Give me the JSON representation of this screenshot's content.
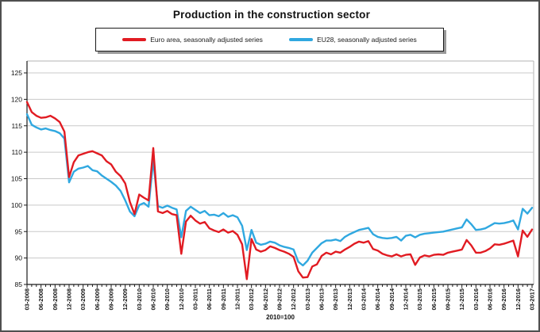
{
  "title": "Production in the construction sector",
  "legend": [
    {
      "label": "Euro area, seasonally adjusted series",
      "color": "#e11b22"
    },
    {
      "label": "EU28, seasonally adjusted series",
      "color": "#30a8e0"
    }
  ],
  "chart_data": {
    "type": "line",
    "note": "2010=100",
    "x_frequency": "monthly",
    "x_tick_labels": [
      "03-2008",
      "06-2008",
      "09-2008",
      "12-2008",
      "03-2009",
      "06-2009",
      "09-2009",
      "12-2009",
      "03-2010",
      "06-2010",
      "09-2010",
      "12-2010",
      "03-2011",
      "06-2011",
      "09-2011",
      "12-2011",
      "03-2012",
      "06-2012",
      "09-2012",
      "12-2012",
      "03-2013",
      "06-2013",
      "09-2013",
      "12-2013",
      "03-2014",
      "06-2014",
      "09-2014",
      "12-2014",
      "03-2015",
      "06-2015",
      "09-2015",
      "12-2015",
      "03-2016",
      "06-2016",
      "09-2016",
      "12-2016",
      "03-2017"
    ],
    "points_per_tick": 3,
    "ylim": [
      85,
      125
    ],
    "y_ticks": [
      85,
      90,
      95,
      100,
      105,
      110,
      115,
      120,
      125
    ],
    "grid": "horizontal",
    "legend_position": "top",
    "series": [
      {
        "name": "Euro area, seasonally adjusted series",
        "color": "#e11b22",
        "values": [
          119.5,
          117.6,
          116.9,
          116.5,
          116.6,
          116.9,
          116.4,
          115.7,
          113.9,
          105.3,
          108.1,
          109.4,
          109.7,
          110.0,
          110.2,
          109.8,
          109.4,
          108.3,
          107.7,
          106.3,
          105.5,
          104.1,
          100.6,
          98.3,
          102.0,
          101.4,
          100.9,
          110.8,
          98.8,
          98.5,
          98.9,
          98.3,
          98.1,
          90.8,
          96.9,
          98.0,
          97.1,
          96.5,
          96.8,
          95.6,
          95.2,
          94.9,
          95.4,
          94.8,
          95.1,
          94.4,
          92.6,
          86.0,
          93.6,
          91.6,
          91.2,
          91.5,
          92.2,
          91.9,
          91.5,
          91.2,
          90.8,
          90.2,
          87.5,
          86.3,
          86.4,
          88.4,
          88.8,
          90.4,
          91.0,
          90.7,
          91.2,
          91.0,
          91.6,
          92.1,
          92.7,
          93.1,
          92.9,
          93.2,
          91.7,
          91.4,
          90.8,
          90.5,
          90.3,
          90.7,
          90.3,
          90.6,
          90.7,
          88.7,
          90.1,
          90.5,
          90.3,
          90.6,
          90.7,
          90.6,
          91.0,
          91.2,
          91.4,
          91.6,
          93.4,
          92.4,
          91.0,
          91.0,
          91.3,
          91.8,
          92.6,
          92.5,
          92.7,
          93.0,
          93.3,
          90.3,
          95.2,
          94.0,
          95.4
        ]
      },
      {
        "name": "EU28, seasonally adjusted series",
        "color": "#30a8e0",
        "values": [
          117.2,
          115.2,
          114.7,
          114.3,
          114.5,
          114.2,
          114.0,
          113.6,
          112.6,
          104.3,
          106.3,
          106.9,
          107.1,
          107.4,
          106.6,
          106.4,
          105.6,
          105.0,
          104.4,
          103.7,
          102.7,
          100.9,
          98.8,
          97.9,
          100.0,
          100.4,
          99.7,
          108.5,
          99.8,
          99.5,
          99.9,
          99.5,
          99.2,
          93.9,
          98.9,
          99.7,
          99.1,
          98.5,
          98.9,
          98.1,
          98.2,
          97.9,
          98.5,
          97.8,
          98.1,
          97.7,
          96.1,
          91.5,
          95.3,
          92.9,
          92.5,
          92.7,
          93.1,
          92.9,
          92.4,
          92.1,
          91.9,
          91.6,
          89.3,
          88.6,
          89.5,
          91.0,
          91.9,
          92.8,
          93.3,
          93.3,
          93.5,
          93.2,
          94.0,
          94.5,
          94.9,
          95.3,
          95.5,
          95.7,
          94.5,
          94.0,
          93.8,
          93.7,
          93.8,
          94.0,
          93.3,
          94.2,
          94.4,
          93.9,
          94.4,
          94.6,
          94.7,
          94.8,
          94.9,
          95.0,
          95.2,
          95.4,
          95.6,
          95.8,
          97.3,
          96.4,
          95.3,
          95.4,
          95.6,
          96.1,
          96.6,
          96.5,
          96.6,
          96.8,
          97.1,
          95.4,
          99.3,
          98.4,
          99.5
        ]
      }
    ]
  }
}
